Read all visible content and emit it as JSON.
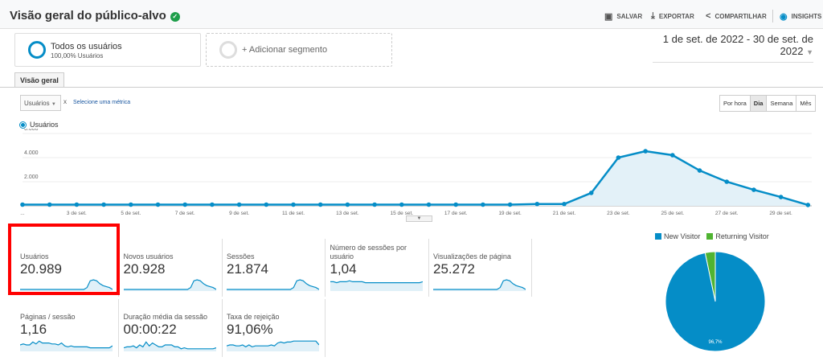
{
  "header": {
    "title": "Visão geral do público-alvo",
    "verified_icon": "shield-check-icon",
    "actions": [
      {
        "label": "SALVAR",
        "icon": "save-icon"
      },
      {
        "label": "EXPORTAR",
        "icon": "download-icon"
      },
      {
        "label": "COMPARTILHAR",
        "icon": "share-icon"
      },
      {
        "label": "INSIGHTS",
        "icon": "insights-icon"
      }
    ]
  },
  "segments": {
    "active": {
      "title": "Todos os usuários",
      "subtitle": "100,00% Usuários"
    },
    "add_label": "+ Adicionar segmento"
  },
  "date_range": "1 de set. de 2022 - 30 de set. de 2022",
  "tabs": [
    {
      "label": "Visão geral",
      "active": true
    }
  ],
  "metric_selector": {
    "value": "Usuários",
    "remove": "x",
    "secondary_link": "Selecione uma métrica"
  },
  "granularity": [
    {
      "label": "Por hora"
    },
    {
      "label": "Dia",
      "active": true
    },
    {
      "label": "Semana"
    },
    {
      "label": "Mês"
    }
  ],
  "colors": {
    "primary": "#058dc7",
    "secondary": "#50b432",
    "highlight": "#ff0000"
  },
  "chart_data": {
    "type": "area",
    "series": [
      {
        "name": "Usuários",
        "values": [
          100,
          100,
          100,
          100,
          100,
          100,
          100,
          100,
          100,
          100,
          100,
          100,
          100,
          100,
          100,
          100,
          100,
          100,
          100,
          150,
          150,
          1070,
          4000,
          4530,
          4200,
          2930,
          2000,
          1330,
          730,
          70
        ]
      }
    ],
    "x": [
      1,
      2,
      3,
      4,
      5,
      6,
      7,
      8,
      9,
      10,
      11,
      12,
      13,
      14,
      15,
      16,
      17,
      18,
      19,
      20,
      21,
      22,
      23,
      24,
      25,
      26,
      27,
      28,
      29,
      30
    ],
    "x_tick_labels": [
      "...",
      "3 de set.",
      "5 de set.",
      "7 de set.",
      "9 de set.",
      "11 de set.",
      "13 de set.",
      "15 de set.",
      "17 de set.",
      "19 de set.",
      "21 de set.",
      "23 de set.",
      "25 de set.",
      "27 de set.",
      "29 de set."
    ],
    "y_tick_labels": [
      "2.000",
      "4.000",
      "6.000"
    ],
    "ylim": [
      0,
      6000
    ],
    "grid": true,
    "legend": "top-left"
  },
  "metrics": [
    {
      "label": "Usuários",
      "value": "20.989",
      "spark": [
        0,
        0,
        0,
        0,
        0,
        0,
        0,
        0,
        0,
        0,
        0,
        0,
        0,
        0,
        0,
        0,
        0,
        0,
        0,
        0,
        0,
        2,
        9,
        10,
        9,
        6,
        4,
        3,
        2,
        0
      ]
    },
    {
      "label": "Novos usuários",
      "value": "20.928",
      "spark": [
        0,
        0,
        0,
        0,
        0,
        0,
        0,
        0,
        0,
        0,
        0,
        0,
        0,
        0,
        0,
        0,
        0,
        0,
        0,
        0,
        0,
        2,
        9,
        10,
        9,
        6,
        4,
        3,
        2,
        0
      ]
    },
    {
      "label": "Sessões",
      "value": "21.874",
      "spark": [
        0,
        0,
        0,
        0,
        0,
        0,
        0,
        0,
        0,
        0,
        0,
        0,
        0,
        0,
        0,
        0,
        0,
        0,
        0,
        0,
        0,
        2,
        9,
        10,
        9,
        6,
        4,
        3,
        2,
        0
      ]
    },
    {
      "label": "Número de sessões por usuário",
      "value": "1,04",
      "spark": [
        8,
        8,
        7,
        8,
        8,
        8,
        9,
        8,
        8,
        8,
        8,
        7,
        7,
        7,
        7,
        7,
        7,
        7,
        7,
        7,
        7,
        7,
        7,
        7,
        7,
        7,
        7,
        7,
        7,
        8
      ]
    },
    {
      "label": "Visualizações de página",
      "value": "25.272",
      "spark": [
        0,
        0,
        0,
        0,
        0,
        0,
        0,
        0,
        0,
        0,
        0,
        0,
        0,
        0,
        0,
        0,
        0,
        0,
        0,
        0,
        0,
        2,
        9,
        10,
        9,
        6,
        4,
        3,
        2,
        0
      ]
    },
    {
      "label": "Páginas / sessão",
      "value": "1,16",
      "spark": [
        5,
        6,
        5,
        5,
        8,
        6,
        9,
        7,
        7,
        7,
        6,
        6,
        5,
        7,
        4,
        3,
        4,
        3,
        3,
        3,
        3,
        3,
        2,
        2,
        2,
        2,
        2,
        2,
        2,
        4
      ]
    },
    {
      "label": "Duração média da sessão",
      "value": "00:00:22",
      "spark": [
        2,
        3,
        3,
        4,
        2,
        5,
        3,
        8,
        4,
        7,
        5,
        3,
        3,
        5,
        5,
        5,
        3,
        3,
        1,
        2,
        1,
        1,
        1,
        1,
        1,
        1,
        1,
        1,
        1,
        2
      ]
    },
    {
      "label": "Taxa de rejeição",
      "value": "91,06%",
      "spark": [
        4,
        5,
        5,
        4,
        4,
        5,
        3,
        5,
        3,
        4,
        4,
        4,
        4,
        4,
        5,
        4,
        7,
        8,
        7,
        8,
        8,
        9,
        9,
        9,
        9,
        9,
        9,
        9,
        9,
        5
      ]
    }
  ],
  "pie": {
    "legend": [
      {
        "label": "New Visitor",
        "value": 96.7,
        "color": "#058dc7"
      },
      {
        "label": "Returning Visitor",
        "value": 3.3,
        "color": "#50b432"
      }
    ],
    "slice_label": "96,7%"
  }
}
